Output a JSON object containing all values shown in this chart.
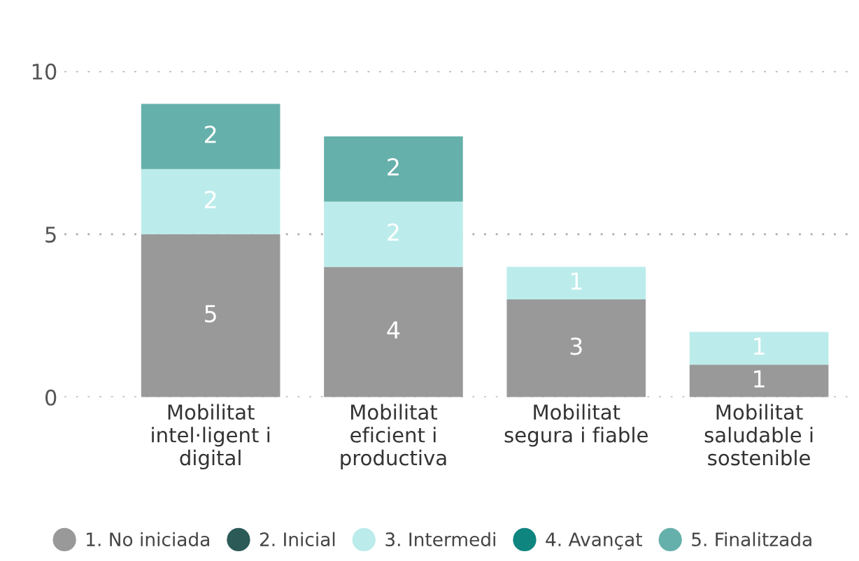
{
  "chart_data": {
    "type": "bar",
    "stacked": true,
    "categories": [
      "Mobilitat\nintel·ligent i\ndigital",
      "Mobilitat\neficient i\nproductiva",
      "Mobilitat\nsegura i fiable",
      "Mobilitat\nsaludable i\nsostenible"
    ],
    "series": [
      {
        "name": "1. No iniciada",
        "color": "#999999",
        "values": [
          5,
          4,
          3,
          1
        ]
      },
      {
        "name": "2. Inicial",
        "color": "#2b5a57",
        "values": [
          null,
          null,
          null,
          null
        ]
      },
      {
        "name": "3. Intermedi",
        "color": "#bbeceb",
        "values": [
          2,
          2,
          1,
          1
        ]
      },
      {
        "name": "4. Avançat",
        "color": "#0f8580",
        "values": [
          null,
          null,
          null,
          null
        ]
      },
      {
        "name": "5. Finalitzada",
        "color": "#66b0ab",
        "values": [
          2,
          2,
          null,
          null
        ]
      }
    ],
    "ylim": [
      0,
      10
    ],
    "yticks": [
      0,
      5,
      10
    ],
    "grid": "y",
    "legend": "bottom",
    "data_labels": true
  }
}
